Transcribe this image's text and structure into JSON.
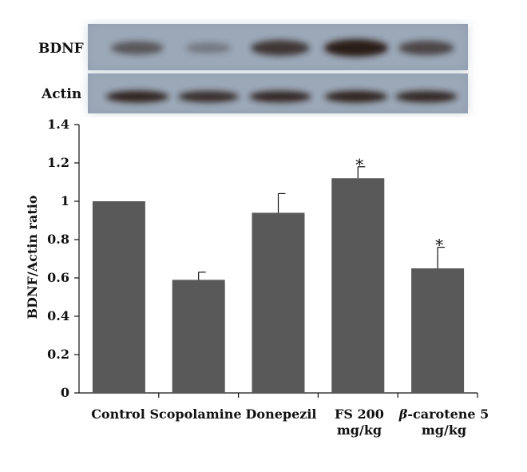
{
  "blot": {
    "rows": [
      {
        "label": "BDNF",
        "band_intensity": [
          0.45,
          0.12,
          0.75,
          1.0,
          0.6
        ]
      },
      {
        "label": "Actin",
        "band_intensity": [
          0.95,
          0.85,
          0.9,
          0.95,
          0.9
        ]
      }
    ]
  },
  "colors": {
    "bar": "#595959",
    "blot_bg": "#8e9cae",
    "band": "#2a1a14"
  },
  "chart_data": {
    "type": "bar",
    "categories": [
      [
        "Control"
      ],
      [
        "Scopolamine"
      ],
      [
        "Donepezil"
      ],
      [
        "FS 200",
        "mg/kg"
      ],
      [
        "β-carotene 5",
        "mg/kg"
      ]
    ],
    "values": [
      1.0,
      0.59,
      0.94,
      1.12,
      0.65
    ],
    "errors": [
      0,
      0.04,
      0.1,
      0.06,
      0.11
    ],
    "significance": [
      "",
      "",
      "",
      "*",
      "*"
    ],
    "title": "",
    "xlabel": "",
    "ylabel": "BDNF/Actin ratio",
    "ylim": [
      0,
      1.4
    ],
    "yticks": [
      "0",
      "0.2",
      "0.4",
      "0.6",
      "0.8",
      "1",
      "1.2",
      "1.4"
    ],
    "grid": false
  }
}
